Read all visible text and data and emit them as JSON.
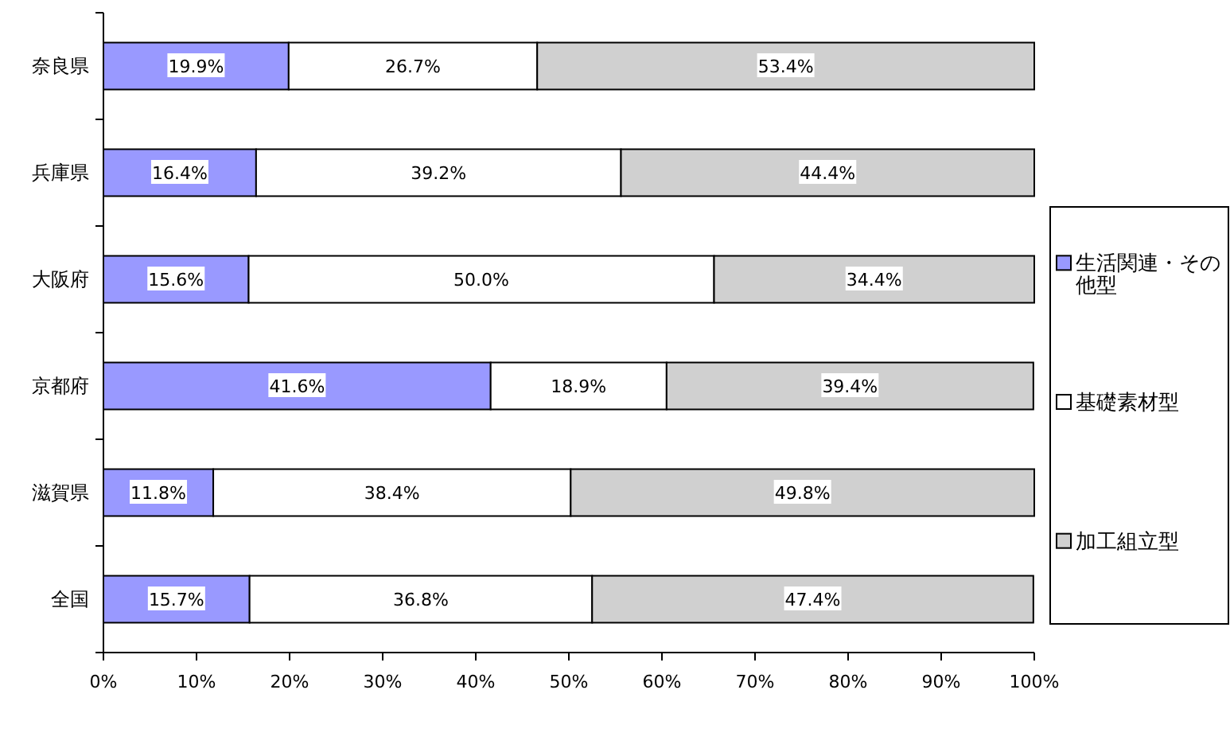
{
  "chart_data": {
    "type": "bar",
    "orientation": "horizontal",
    "stacked": true,
    "legend": "right",
    "categories": [
      "奈良県",
      "兵庫県",
      "大阪府",
      "京都府",
      "滋賀県",
      "全国"
    ],
    "xlim": [
      0,
      100
    ],
    "xticks": [
      {
        "value": 0,
        "label": "0%"
      },
      {
        "value": 10,
        "label": "10%"
      },
      {
        "value": 20,
        "label": "20%"
      },
      {
        "value": 30,
        "label": "30%"
      },
      {
        "value": 40,
        "label": "40%"
      },
      {
        "value": 50,
        "label": "50%"
      },
      {
        "value": 60,
        "label": "60%"
      },
      {
        "value": 70,
        "label": "70%"
      },
      {
        "value": 80,
        "label": "80%"
      },
      {
        "value": 90,
        "label": "90%"
      },
      {
        "value": 100,
        "label": "100%"
      }
    ],
    "series": [
      {
        "name": "生活関連・その他型",
        "color": "#9999ff",
        "values": [
          19.9,
          16.4,
          15.6,
          41.6,
          11.8,
          15.7
        ],
        "value_labels": [
          "19.9%",
          "16.4%",
          "15.6%",
          "41.6%",
          "11.8%",
          "15.7%"
        ]
      },
      {
        "name": "基礎素材型",
        "color": "#ffffff",
        "values": [
          26.7,
          39.2,
          50.0,
          18.9,
          38.4,
          36.8
        ],
        "value_labels": [
          "26.7%",
          "39.2%",
          "50.0%",
          "18.9%",
          "38.4%",
          "36.8%"
        ]
      },
      {
        "name": "加工組立型",
        "color": "#d0d0d0",
        "values": [
          53.4,
          44.4,
          34.4,
          39.4,
          49.8,
          47.4
        ],
        "value_labels": [
          "53.4%",
          "44.4%",
          "34.4%",
          "39.4%",
          "49.8%",
          "47.4%"
        ]
      }
    ]
  }
}
